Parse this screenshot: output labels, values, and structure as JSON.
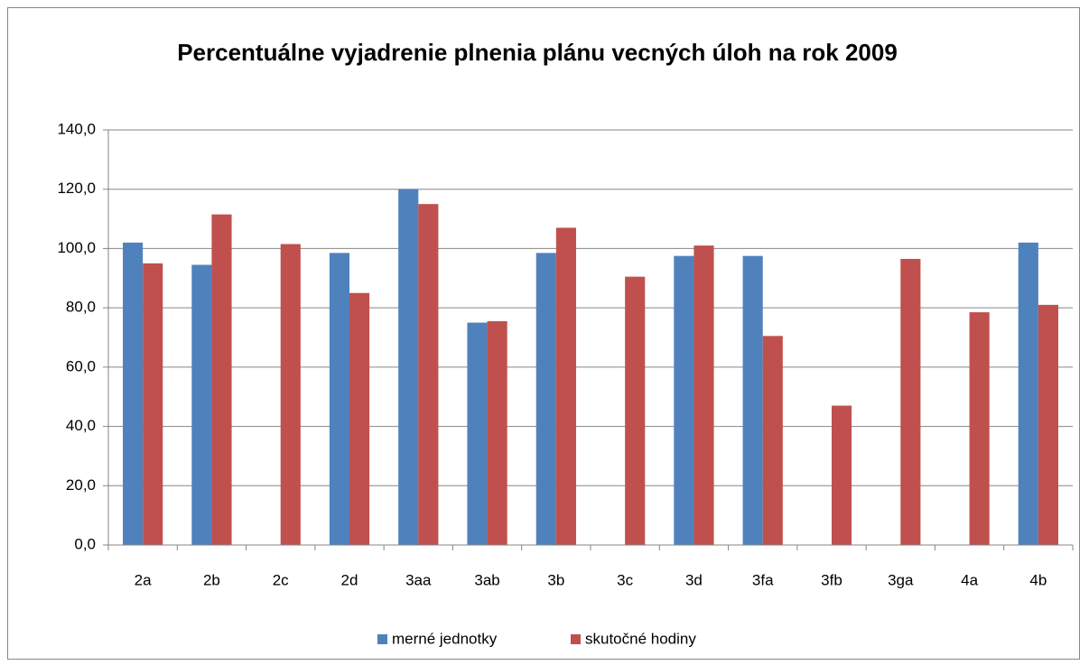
{
  "chart_data": {
    "type": "bar",
    "title": "Percentuálne vyjadrenie plnenia plánu vecných úloh na rok 2009",
    "categories": [
      "2a",
      "2b",
      "2c",
      "2d",
      "3aa",
      "3ab",
      "3b",
      "3c",
      "3d",
      "3fa",
      "3fb",
      "3ga",
      "4a",
      "4b"
    ],
    "series": [
      {
        "name": "merné jednotky",
        "color": "#4f81bd",
        "values": [
          102,
          94.5,
          null,
          98.5,
          120,
          75,
          98.5,
          null,
          97.5,
          97.5,
          null,
          null,
          null,
          102
        ]
      },
      {
        "name": "skutočné hodiny",
        "color": "#c0504d",
        "values": [
          95,
          111.5,
          101.5,
          85,
          115,
          75.5,
          107,
          90.5,
          101,
          70.5,
          47,
          96.5,
          78.5,
          81
        ]
      }
    ],
    "ylim": [
      0,
      140
    ],
    "yticks": [
      {
        "value": 0,
        "label": "0,0"
      },
      {
        "value": 20,
        "label": "20,0"
      },
      {
        "value": 40,
        "label": "40,0"
      },
      {
        "value": 60,
        "label": "60,0"
      },
      {
        "value": 80,
        "label": "80,0"
      },
      {
        "value": 100,
        "label": "100,0"
      },
      {
        "value": 120,
        "label": "120,0"
      },
      {
        "value": 140,
        "label": "140,0"
      }
    ],
    "grid": true,
    "legend": "bottom"
  }
}
